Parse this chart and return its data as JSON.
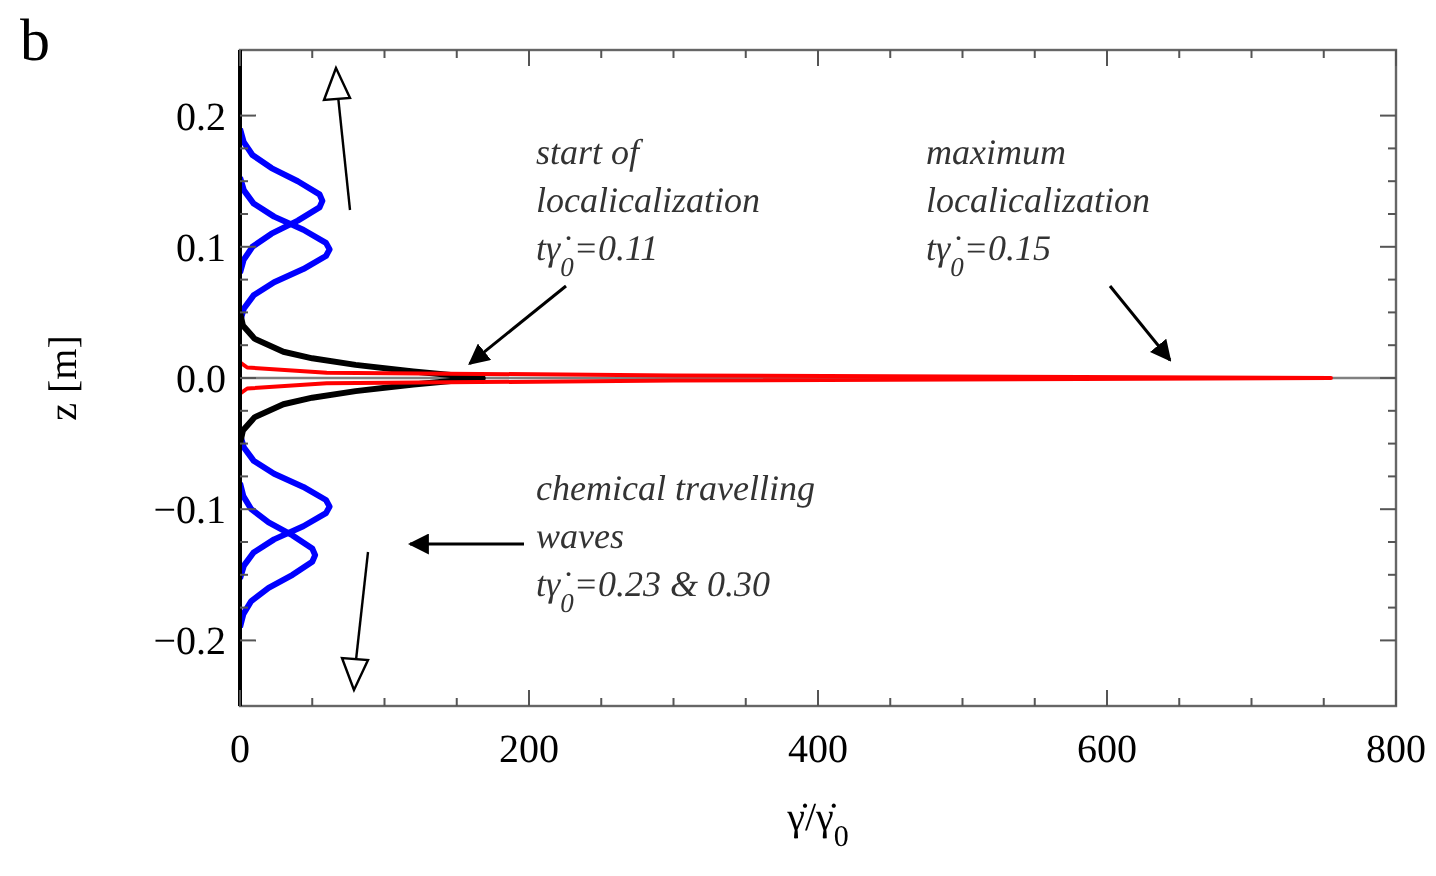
{
  "chart_data": {
    "type": "line",
    "title": "b",
    "xlabel": "γ̇/γ̇$_{0}$",
    "ylabel": "z [m]",
    "xlim": [
      0,
      800
    ],
    "ylim": [
      -0.25,
      0.25
    ],
    "xticks": [
      0,
      {
        "value": 50,
        "label": null
      },
      {
        "value": 100,
        "label": null
      },
      {
        "value": 150,
        "label": null
      },
      200,
      {
        "value": 250,
        "label": null
      },
      {
        "value": 300,
        "label": null
      },
      {
        "value": 350,
        "label": null
      },
      400,
      {
        "value": 450,
        "label": null
      },
      {
        "value": 500,
        "label": null
      },
      {
        "value": 550,
        "label": null
      },
      600,
      {
        "value": 650,
        "label": null
      },
      {
        "value": 700,
        "label": null
      },
      {
        "value": 750,
        "label": null
      },
      800
    ],
    "yticks": [
      {
        "value": -0.2,
        "label": "−0.2"
      },
      {
        "value": -0.175,
        "label": null
      },
      {
        "value": -0.15,
        "label": null
      },
      {
        "value": -0.125,
        "label": null
      },
      {
        "value": -0.1,
        "label": "−0.1"
      },
      {
        "value": -0.075,
        "label": null
      },
      {
        "value": -0.05,
        "label": null
      },
      {
        "value": -0.025,
        "label": null
      },
      {
        "value": 0,
        "label": "0.0"
      },
      {
        "value": 0.025,
        "label": null
      },
      {
        "value": 0.05,
        "label": null
      },
      {
        "value": 0.075,
        "label": null
      },
      0.1,
      {
        "value": 0.125,
        "label": null
      },
      {
        "value": 0.15,
        "label": null
      },
      {
        "value": 0.175,
        "label": null
      },
      0.2
    ],
    "grid": false,
    "marker": "none",
    "line_style": "solid",
    "ref_lines": [
      {
        "axis": "y",
        "value": 0,
        "color": "#808080"
      }
    ],
    "series": [
      {
        "color": "#0000ff",
        "x": [
          0,
          2.5,
          8.6,
          21.8,
          40,
          55,
          57,
          55,
          40,
          21.8,
          8.6,
          2.5,
          0
        ],
        "values": [
          0.08,
          0.09,
          0.1,
          0.11,
          0.12,
          0.13,
          0.135,
          0.14,
          0.15,
          0.16,
          0.17,
          0.18,
          0.19
        ]
      },
      {
        "color": "#0000ff",
        "x": [
          0,
          2.7,
          9.4,
          23.6,
          43.8,
          59.5,
          62,
          59.5,
          43.8,
          23.6,
          9.4,
          2.7,
          0
        ],
        "values": [
          0.043,
          0.053,
          0.063,
          0.073,
          0.083,
          0.093,
          0.098,
          0.103,
          0.113,
          0.123,
          0.133,
          0.143,
          0.153
        ]
      },
      {
        "color": "#0000ff",
        "x": [
          0,
          2.7,
          9.4,
          23.6,
          43.8,
          59.5,
          62,
          59.5,
          43.8,
          23.6,
          9.4,
          2.7,
          0
        ],
        "values": [
          -0.043,
          -0.053,
          -0.063,
          -0.073,
          -0.083,
          -0.093,
          -0.098,
          -0.103,
          -0.113,
          -0.123,
          -0.133,
          -0.143,
          -0.153
        ]
      },
      {
        "color": "#0000ff",
        "x": [
          0,
          2.3,
          7.8,
          19.8,
          36.4,
          50,
          52,
          50,
          36.4,
          19.8,
          7.8,
          2.3,
          0
        ],
        "values": [
          -0.08,
          -0.09,
          -0.1,
          -0.11,
          -0.12,
          -0.13,
          -0.135,
          -0.14,
          -0.15,
          -0.16,
          -0.17,
          -0.18,
          -0.19
        ]
      },
      {
        "color": "#000000",
        "x": [
          0,
          2,
          10,
          30,
          50,
          80,
          120,
          168,
          120,
          80,
          50,
          30,
          10,
          2,
          0
        ],
        "values": [
          -0.05,
          -0.04,
          -0.03,
          -0.02,
          -0.015,
          -0.01,
          -0.005,
          0,
          0.005,
          0.01,
          0.015,
          0.02,
          0.03,
          0.04,
          0.05
        ]
      },
      {
        "color": "#ff0000",
        "x": [
          0,
          5,
          60,
          300,
          755,
          300,
          60,
          5,
          0
        ],
        "values": [
          -0.012,
          -0.008,
          -0.004,
          -0.002,
          0,
          0.002,
          0.004,
          0.008,
          0.012
        ]
      }
    ],
    "annotations": [
      {
        "text": "start of\nlocalicalization\ntγ̇$_{0}$=0.11",
        "x": 159,
        "y": 0.011
      },
      "maximum\nlocalicalization\ntγ̇$_{0}$=0.15",
      "chemical travelling\nwaves\ntγ̇$_{0}$=0.23 & 0.30"
    ]
  }
}
